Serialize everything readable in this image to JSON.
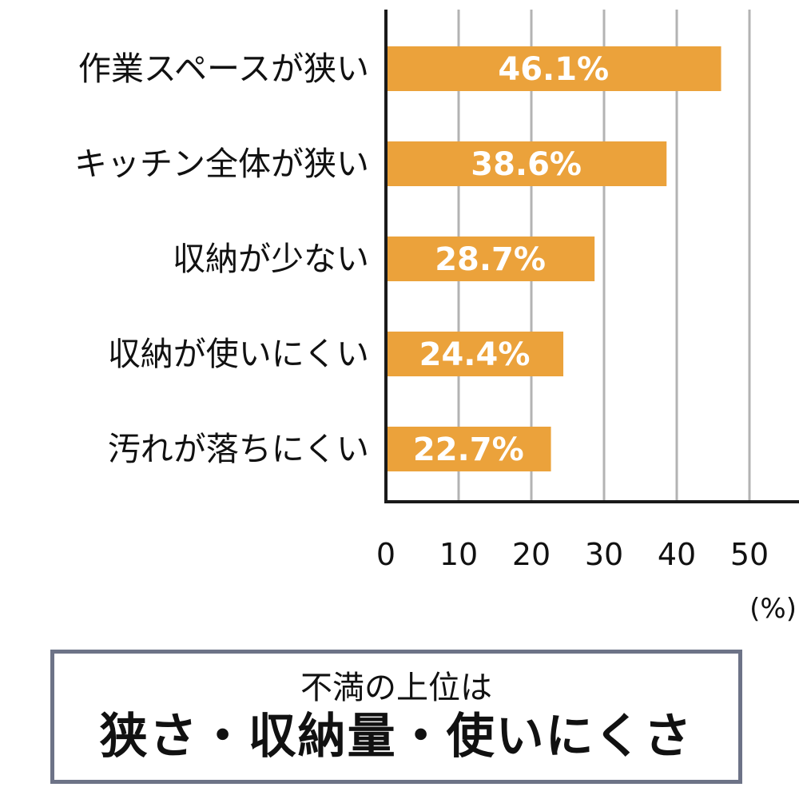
{
  "chart_data": {
    "type": "bar",
    "orientation": "horizontal",
    "categories": [
      "作業スペースが狭い",
      "キッチン全体が狭い",
      "収納が少ない",
      "収納が使いにくい",
      "汚れが落ちにくい"
    ],
    "values": [
      46.1,
      38.6,
      28.7,
      24.4,
      22.7
    ],
    "value_labels": [
      "46.1%",
      "38.6%",
      "28.7%",
      "24.4%",
      "22.7%"
    ],
    "xticks": [
      "0",
      "10",
      "20",
      "30",
      "40",
      "50"
    ],
    "xtick_values": [
      0,
      10,
      20,
      30,
      40,
      50
    ],
    "xlim": [
      0,
      56
    ],
    "xlabel": "(%)",
    "bar_color": "#eba23b",
    "grid": true,
    "grid_color": "#b3b3b3",
    "axis_color": "#1a1a1a"
  },
  "summary": {
    "subtitle": "不満の上位は",
    "headline": "狭さ・収納量・使いにくさ",
    "border_color": "#6d7387"
  }
}
